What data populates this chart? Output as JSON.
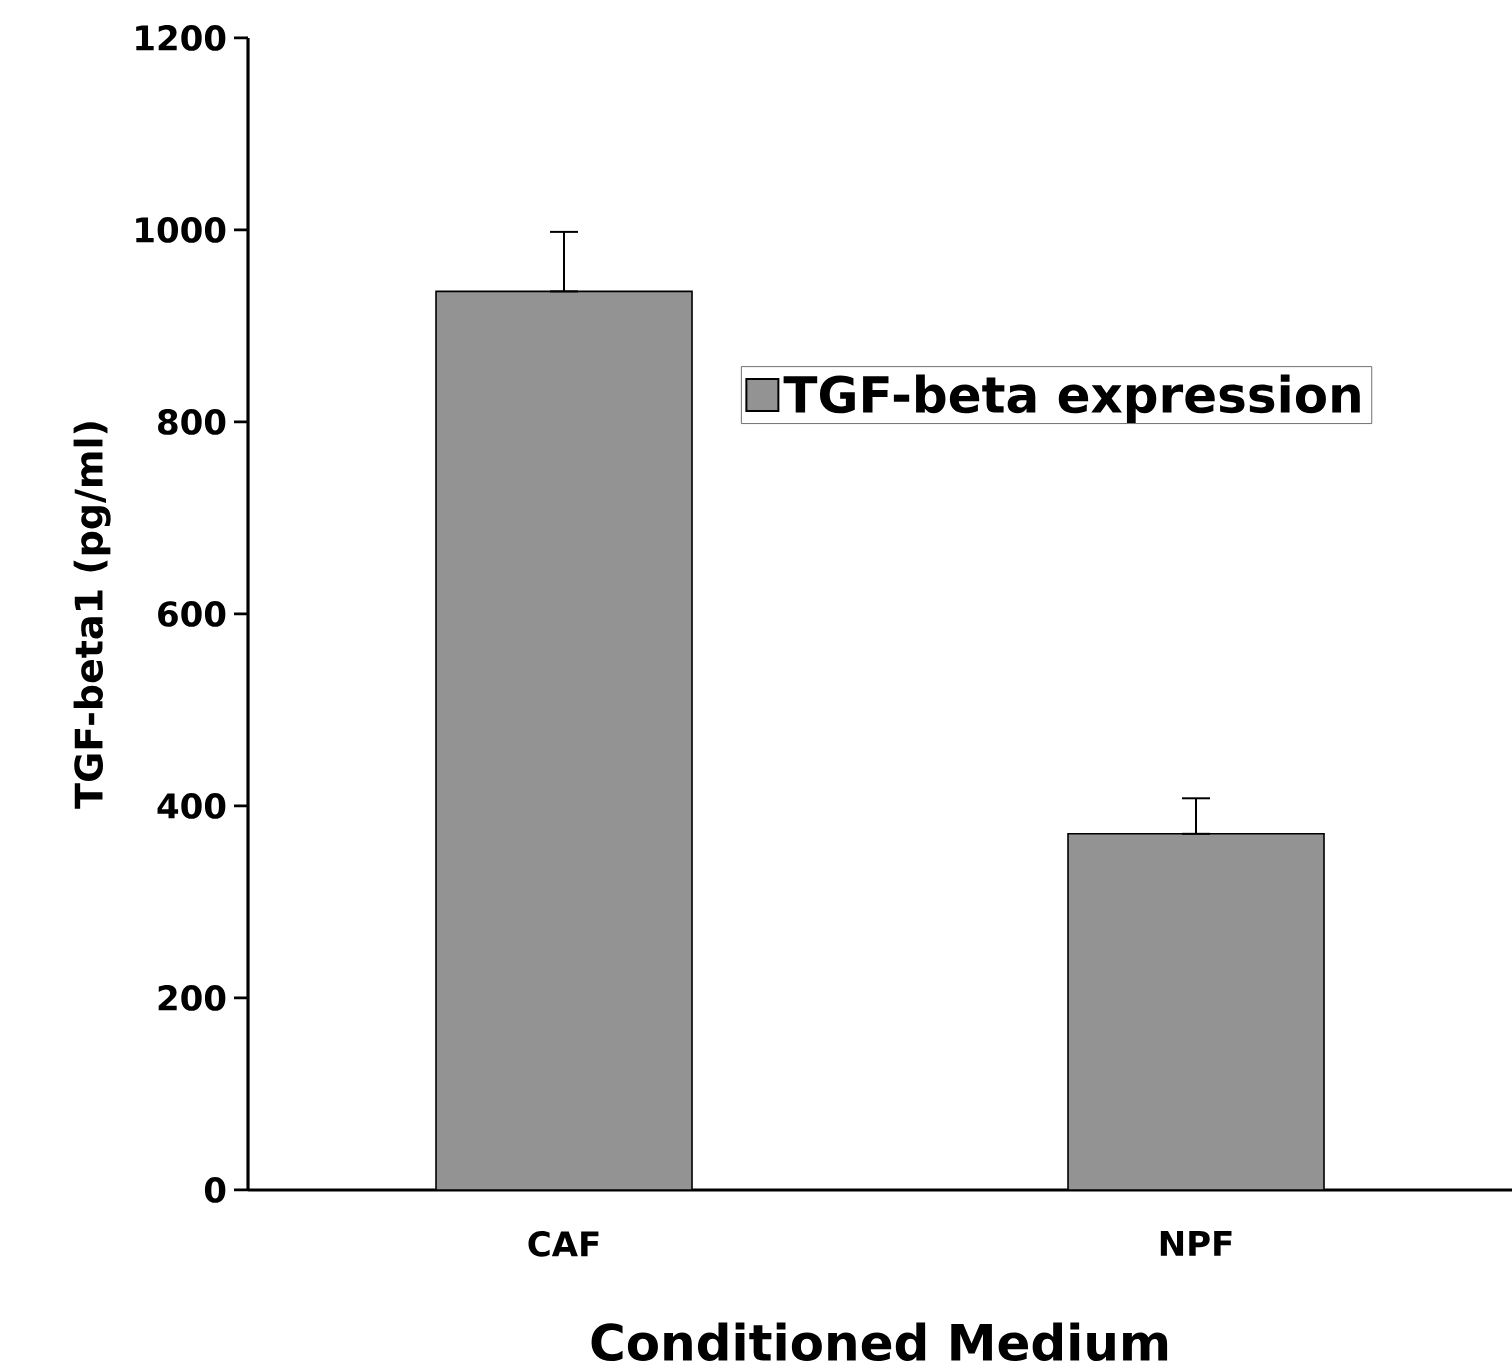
{
  "chart_data": {
    "type": "bar",
    "xlabel": "Conditioned Medium",
    "ylabel": "TGF-beta1 (pg/ml)",
    "categories": [
      "CAF",
      "NPF"
    ],
    "series": [
      {
        "name": "TGF-beta expression",
        "color": "#939393",
        "values": [
          936,
          371
        ],
        "errors": [
          [
            936,
            998
          ],
          [
            371,
            408
          ]
        ]
      }
    ],
    "ylim": [
      0,
      1200
    ],
    "yticks": [
      0,
      200,
      400,
      600,
      800,
      1000,
      1200
    ],
    "legend": "right",
    "grid": false
  }
}
